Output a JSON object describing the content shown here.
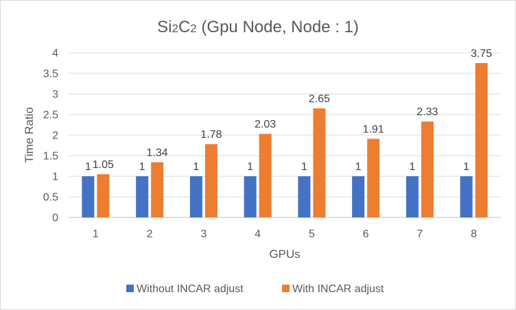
{
  "chart_data": {
    "type": "bar",
    "title": "Si2C2 (Gpu Node, Node : 1)",
    "title_parts": {
      "pre": "Si",
      "sub1": "2",
      "mid": "C",
      "sub2": "2",
      "post": " (Gpu Node, Node : 1)"
    },
    "xlabel": "GPUs",
    "ylabel": "Time Ratio",
    "categories": [
      "1",
      "2",
      "3",
      "4",
      "5",
      "6",
      "7",
      "8"
    ],
    "ylim": [
      0,
      4
    ],
    "yticks": [
      "0",
      "0.5",
      "1",
      "1.5",
      "2",
      "2.5",
      "3",
      "3.5",
      "4"
    ],
    "ytick_values": [
      0,
      0.5,
      1,
      1.5,
      2,
      2.5,
      3,
      3.5,
      4
    ],
    "grid": true,
    "legend_position": "bottom",
    "series": [
      {
        "name": "Without INCAR adjust",
        "color": "#4472C4",
        "values": [
          1,
          1,
          1,
          1,
          1,
          1,
          1,
          1
        ],
        "labels": [
          "1",
          "1",
          "1",
          "1",
          "1",
          "1",
          "1",
          "1"
        ]
      },
      {
        "name": "With INCAR adjust",
        "color": "#ED7D31",
        "values": [
          1.05,
          1.34,
          1.78,
          2.03,
          2.65,
          1.91,
          2.33,
          3.75
        ],
        "labels": [
          "1.05",
          "1.34",
          "1.78",
          "2.03",
          "2.65",
          "1.91",
          "2.33",
          "3.75"
        ]
      }
    ]
  }
}
